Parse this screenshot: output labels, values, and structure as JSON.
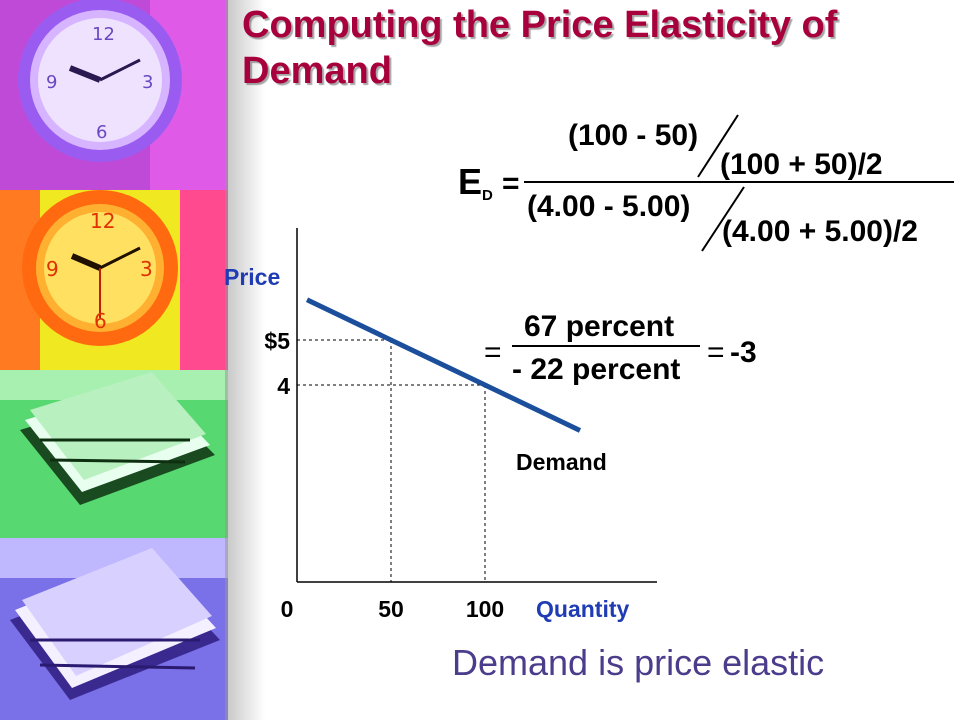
{
  "slide": {
    "title": "Computing the Price Elasticity of Demand",
    "conclusion": "Demand is price elastic"
  },
  "formula": {
    "symbol": "E",
    "subscript": "D",
    "equals": "=",
    "q_change": "(100 - 50)",
    "q_midpoint": "(100 + 50)/2",
    "p_change": "(4.00 - 5.00)",
    "p_midpoint": "(4.00 + 5.00)/2",
    "pct_quantity": "67 percent",
    "pct_price": "- 22 percent",
    "result": "-3"
  },
  "chart_data": {
    "type": "line",
    "xlabel": "Quantity",
    "ylabel": "Price",
    "x_ticks": [
      "0",
      "50",
      "100"
    ],
    "y_ticks": [
      "$5",
      "4"
    ],
    "series": [
      {
        "name": "Demand",
        "x": [
          50,
          100
        ],
        "y": [
          5,
          4
        ]
      }
    ],
    "reference_points": [
      {
        "x": 50,
        "y": 5
      },
      {
        "x": 100,
        "y": 4
      }
    ]
  },
  "colors": {
    "title": "#a8003c",
    "axis_label": "#1f3cb4",
    "demand_line": "#1b4f9c",
    "conclusion": "#4b3c8c"
  },
  "icons": [
    "clock-image",
    "stacked-papers-image"
  ]
}
